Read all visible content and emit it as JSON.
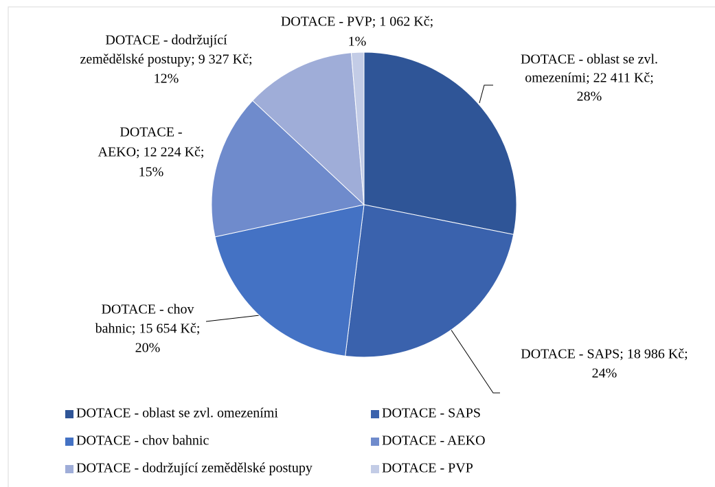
{
  "chart_data": {
    "type": "pie",
    "categories": [
      "DOTACE - oblast se zvl. omezeními",
      "DOTACE - SAPS",
      "DOTACE - chov bahnic",
      "DOTACE - AEKO",
      "DOTACE - dodržující zemědělské postupy",
      "DOTACE - PVP"
    ],
    "values": [
      22411,
      18986,
      15654,
      12224,
      9327,
      1062
    ],
    "data_labels": [
      [
        "DOTACE - oblast se zvl.",
        "omezeními; 22 411 Kč;",
        "28%"
      ],
      [
        "DOTACE - SAPS;  18 986 Kč;",
        "24%"
      ],
      [
        "DOTACE - chov",
        "bahnic; 15 654 Kč;",
        "20%"
      ],
      [
        "DOTACE -",
        "AEKO; 12 224 Kč;",
        "15%"
      ],
      [
        "DOTACE - dodržující",
        "zemědělské postupy; 9 327 Kč;",
        "12%"
      ],
      [
        "DOTACE - PVP; 1 062 Kč;",
        "1%"
      ]
    ],
    "colors": [
      "#2f5597",
      "#3a62ad",
      "#4472c4",
      "#6f8bcc",
      "#9fadd8",
      "#c3cce6"
    ],
    "legend": "bottom"
  }
}
